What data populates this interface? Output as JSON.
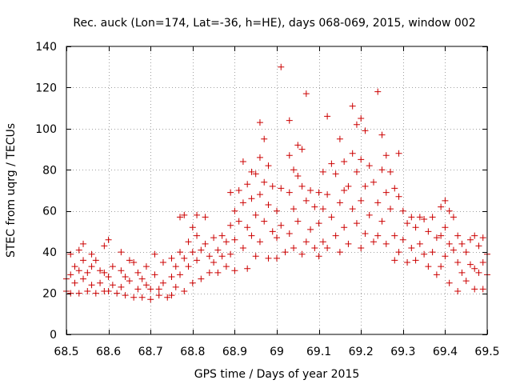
{
  "chart_data": {
    "type": "scatter",
    "title": "Rec. auck (Lon=174, Lat=-36, h=HE), days 068-069, 2015, window 002",
    "xlabel": "GPS time / Days of year 2015",
    "ylabel": "STEC from uqrg / TECUs",
    "xlim": [
      68.5,
      69.5
    ],
    "ylim": [
      0,
      140
    ],
    "xticks": [
      68.5,
      68.6,
      68.7,
      68.8,
      68.9,
      69.0,
      69.1,
      69.2,
      69.3,
      69.4,
      69.5
    ],
    "xtick_labels": [
      "68.5",
      "68.6",
      "68.7",
      "68.8",
      "68.9",
      "69",
      "69.1",
      "69.2",
      "69.3",
      "69.4",
      "69.5"
    ],
    "yticks": [
      0,
      20,
      40,
      60,
      80,
      100,
      120,
      140
    ],
    "ytick_labels": [
      "0",
      "20",
      "40",
      "60",
      "80",
      "100",
      "120",
      "140"
    ],
    "grid": true,
    "marker": "+",
    "color": "#cc0000",
    "series": [
      {
        "name": "STEC",
        "points": [
          [
            68.5,
            27
          ],
          [
            68.5,
            21
          ],
          [
            68.51,
            39
          ],
          [
            68.51,
            29
          ],
          [
            68.51,
            20
          ],
          [
            68.52,
            33
          ],
          [
            68.52,
            25
          ],
          [
            68.53,
            41
          ],
          [
            68.53,
            31
          ],
          [
            68.53,
            20
          ],
          [
            68.54,
            36
          ],
          [
            68.54,
            27
          ],
          [
            68.54,
            44
          ],
          [
            68.55,
            30
          ],
          [
            68.55,
            21
          ],
          [
            68.56,
            39
          ],
          [
            68.56,
            33
          ],
          [
            68.56,
            24
          ],
          [
            68.57,
            36
          ],
          [
            68.57,
            20
          ],
          [
            68.58,
            31
          ],
          [
            68.58,
            25
          ],
          [
            68.59,
            43
          ],
          [
            68.59,
            30
          ],
          [
            68.59,
            21
          ],
          [
            68.6,
            46
          ],
          [
            68.6,
            28
          ],
          [
            68.6,
            21
          ],
          [
            68.61,
            33
          ],
          [
            68.61,
            24
          ],
          [
            68.62,
            20
          ],
          [
            68.63,
            40
          ],
          [
            68.63,
            31
          ],
          [
            68.63,
            23
          ],
          [
            68.64,
            28
          ],
          [
            68.64,
            19
          ],
          [
            68.65,
            36
          ],
          [
            68.65,
            26
          ],
          [
            68.66,
            35
          ],
          [
            68.66,
            18
          ],
          [
            68.67,
            30
          ],
          [
            68.67,
            22
          ],
          [
            68.68,
            27
          ],
          [
            68.68,
            18
          ],
          [
            68.69,
            33
          ],
          [
            68.69,
            24
          ],
          [
            68.7,
            22
          ],
          [
            68.7,
            17
          ],
          [
            68.71,
            39
          ],
          [
            68.71,
            29
          ],
          [
            68.72,
            22
          ],
          [
            68.72,
            19
          ],
          [
            68.73,
            35
          ],
          [
            68.73,
            25
          ],
          [
            68.74,
            18
          ],
          [
            68.75,
            37
          ],
          [
            68.75,
            28
          ],
          [
            68.75,
            19
          ],
          [
            68.76,
            33
          ],
          [
            68.76,
            23
          ],
          [
            68.77,
            57
          ],
          [
            68.77,
            40
          ],
          [
            68.77,
            29
          ],
          [
            68.78,
            58
          ],
          [
            68.78,
            37
          ],
          [
            68.78,
            21
          ],
          [
            68.79,
            45
          ],
          [
            68.79,
            33
          ],
          [
            68.8,
            52
          ],
          [
            68.8,
            40
          ],
          [
            68.8,
            25
          ],
          [
            68.81,
            58
          ],
          [
            68.81,
            48
          ],
          [
            68.81,
            36
          ],
          [
            68.82,
            41
          ],
          [
            68.82,
            27
          ],
          [
            68.83,
            57
          ],
          [
            68.83,
            44
          ],
          [
            68.84,
            38
          ],
          [
            68.84,
            30
          ],
          [
            68.85,
            47
          ],
          [
            68.85,
            35
          ],
          [
            68.86,
            41
          ],
          [
            68.86,
            30
          ],
          [
            68.87,
            48
          ],
          [
            68.87,
            38
          ],
          [
            68.88,
            45
          ],
          [
            68.88,
            33
          ],
          [
            68.89,
            69
          ],
          [
            68.89,
            53
          ],
          [
            68.89,
            39
          ],
          [
            68.9,
            60
          ],
          [
            68.9,
            46
          ],
          [
            68.9,
            31
          ],
          [
            68.91,
            70
          ],
          [
            68.91,
            55
          ],
          [
            68.92,
            84
          ],
          [
            68.92,
            64
          ],
          [
            68.92,
            42
          ],
          [
            68.93,
            73
          ],
          [
            68.93,
            52
          ],
          [
            68.93,
            32
          ],
          [
            68.94,
            79
          ],
          [
            68.94,
            66
          ],
          [
            68.94,
            48
          ],
          [
            68.95,
            78
          ],
          [
            68.95,
            58
          ],
          [
            68.95,
            38
          ],
          [
            68.96,
            103
          ],
          [
            68.96,
            86
          ],
          [
            68.96,
            68
          ],
          [
            68.96,
            45
          ],
          [
            68.97,
            95
          ],
          [
            68.97,
            74
          ],
          [
            68.97,
            55
          ],
          [
            68.98,
            82
          ],
          [
            68.98,
            63
          ],
          [
            68.98,
            37
          ],
          [
            68.99,
            72
          ],
          [
            68.99,
            50
          ],
          [
            69.0,
            60
          ],
          [
            69.0,
            47
          ],
          [
            69.0,
            37
          ],
          [
            69.01,
            130
          ],
          [
            69.01,
            71
          ],
          [
            69.01,
            53
          ],
          [
            69.02,
            40
          ],
          [
            69.03,
            104
          ],
          [
            69.03,
            87
          ],
          [
            69.03,
            69
          ],
          [
            69.03,
            49
          ],
          [
            69.04,
            80
          ],
          [
            69.04,
            61
          ],
          [
            69.04,
            42
          ],
          [
            69.05,
            92
          ],
          [
            69.05,
            77
          ],
          [
            69.05,
            55
          ],
          [
            69.06,
            90
          ],
          [
            69.06,
            72
          ],
          [
            69.06,
            39
          ],
          [
            69.07,
            117
          ],
          [
            69.07,
            65
          ],
          [
            69.07,
            45
          ],
          [
            69.08,
            70
          ],
          [
            69.08,
            51
          ],
          [
            69.09,
            62
          ],
          [
            69.09,
            42
          ],
          [
            69.1,
            69
          ],
          [
            69.1,
            54
          ],
          [
            69.1,
            38
          ],
          [
            69.11,
            79
          ],
          [
            69.11,
            61
          ],
          [
            69.11,
            45
          ],
          [
            69.12,
            106
          ],
          [
            69.12,
            68
          ],
          [
            69.12,
            42
          ],
          [
            69.13,
            83
          ],
          [
            69.13,
            57
          ],
          [
            69.14,
            78
          ],
          [
            69.14,
            48
          ],
          [
            69.15,
            95
          ],
          [
            69.15,
            64
          ],
          [
            69.15,
            40
          ],
          [
            69.16,
            84
          ],
          [
            69.16,
            70
          ],
          [
            69.16,
            52
          ],
          [
            69.17,
            72
          ],
          [
            69.17,
            44
          ],
          [
            69.18,
            111
          ],
          [
            69.18,
            88
          ],
          [
            69.18,
            61
          ],
          [
            69.19,
            102
          ],
          [
            69.19,
            79
          ],
          [
            69.19,
            54
          ],
          [
            69.2,
            105
          ],
          [
            69.2,
            85
          ],
          [
            69.2,
            65
          ],
          [
            69.2,
            42
          ],
          [
            69.21,
            99
          ],
          [
            69.21,
            72
          ],
          [
            69.21,
            49
          ],
          [
            69.22,
            82
          ],
          [
            69.22,
            58
          ],
          [
            69.23,
            74
          ],
          [
            69.23,
            45
          ],
          [
            69.24,
            118
          ],
          [
            69.24,
            64
          ],
          [
            69.24,
            48
          ],
          [
            69.25,
            97
          ],
          [
            69.25,
            80
          ],
          [
            69.25,
            55
          ],
          [
            69.26,
            87
          ],
          [
            69.26,
            69
          ],
          [
            69.26,
            44
          ],
          [
            69.27,
            79
          ],
          [
            69.27,
            61
          ],
          [
            69.28,
            71
          ],
          [
            69.28,
            48
          ],
          [
            69.28,
            36
          ],
          [
            69.29,
            88
          ],
          [
            69.29,
            67
          ],
          [
            69.29,
            40
          ],
          [
            69.3,
            60
          ],
          [
            69.3,
            46
          ],
          [
            69.31,
            54
          ],
          [
            69.31,
            35
          ],
          [
            69.32,
            57
          ],
          [
            69.32,
            42
          ],
          [
            69.33,
            52
          ],
          [
            69.33,
            36
          ],
          [
            69.34,
            57
          ],
          [
            69.34,
            44
          ],
          [
            69.35,
            56
          ],
          [
            69.35,
            39
          ],
          [
            69.36,
            50
          ],
          [
            69.36,
            33
          ],
          [
            69.37,
            57
          ],
          [
            69.37,
            40
          ],
          [
            69.38,
            47
          ],
          [
            69.38,
            29
          ],
          [
            69.39,
            62
          ],
          [
            69.39,
            48
          ],
          [
            69.39,
            33
          ],
          [
            69.4,
            65
          ],
          [
            69.4,
            52
          ],
          [
            69.4,
            38
          ],
          [
            69.41,
            60
          ],
          [
            69.41,
            44
          ],
          [
            69.41,
            25
          ],
          [
            69.42,
            57
          ],
          [
            69.42,
            41
          ],
          [
            69.43,
            48
          ],
          [
            69.43,
            35
          ],
          [
            69.43,
            21
          ],
          [
            69.44,
            44
          ],
          [
            69.44,
            30
          ],
          [
            69.45,
            40
          ],
          [
            69.45,
            26
          ],
          [
            69.46,
            46
          ],
          [
            69.46,
            34
          ],
          [
            69.47,
            48
          ],
          [
            69.47,
            32
          ],
          [
            69.47,
            22
          ],
          [
            69.48,
            43
          ],
          [
            69.48,
            30
          ],
          [
            69.49,
            47
          ],
          [
            69.49,
            35
          ],
          [
            69.49,
            22
          ],
          [
            69.5,
            39
          ],
          [
            69.5,
            29
          ]
        ]
      }
    ]
  }
}
